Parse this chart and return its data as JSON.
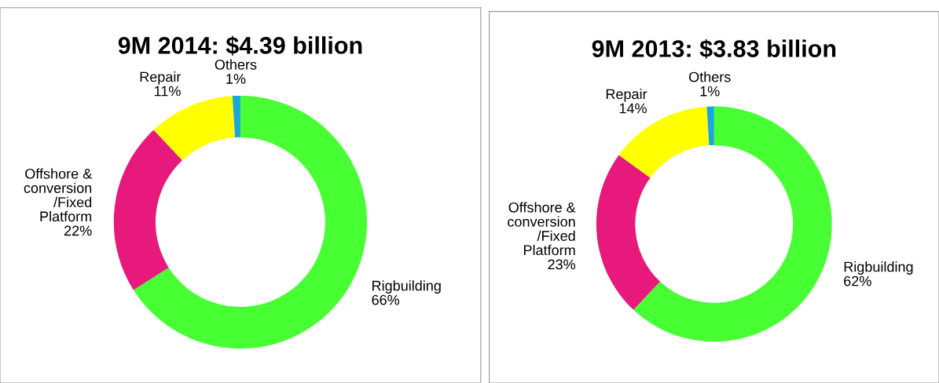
{
  "chart_data": [
    {
      "type": "donut",
      "title": "9M 2014: $4.39 billion",
      "categories": [
        "Rigbuilding",
        "Offshore &\nconversion\n/Fixed\nPlatform",
        "Repair",
        "Others"
      ],
      "values": [
        66,
        22,
        11,
        1
      ],
      "value_labels": [
        "66%",
        "22%",
        "11%",
        "1%"
      ],
      "colors": [
        "#47ff33",
        "#e8197d",
        "#ffff00",
        "#1aa7d8"
      ]
    },
    {
      "type": "donut",
      "title": "9M 2013: $3.83 billion",
      "categories": [
        "Rigbuilding",
        "Offshore &\nconversion\n/Fixed\nPlatform",
        "Repair",
        "Others"
      ],
      "values": [
        62,
        23,
        14,
        1
      ],
      "value_labels": [
        "62%",
        "23%",
        "14%",
        "1%"
      ],
      "colors": [
        "#47ff33",
        "#e8197d",
        "#ffff00",
        "#1aa7d8"
      ]
    }
  ]
}
